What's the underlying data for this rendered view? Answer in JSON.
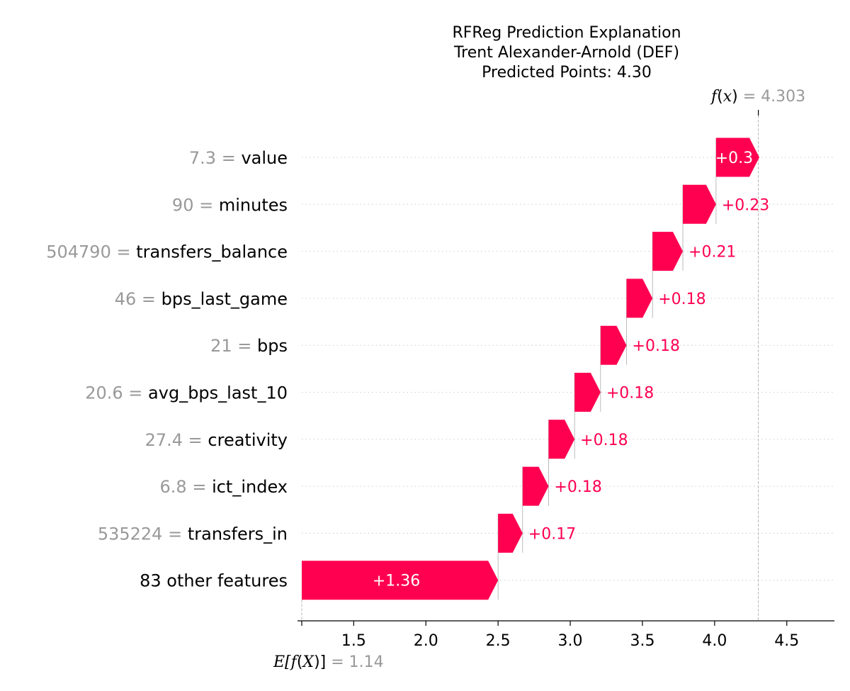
{
  "chart_data": {
    "type": "waterfall",
    "title_lines": [
      "RFReg Prediction Explanation",
      "Trent Alexander-Arnold (DEF)",
      "Predicted Points: 4.30"
    ],
    "base_value": 1.14,
    "base_value_label": "1.14",
    "base_label": {
      "prefix": "E[",
      "func": "f",
      "paren_open": "(",
      "var": "X",
      "suffix": ")]",
      "equals": " = "
    },
    "final_value": 4.303,
    "final_value_label": "4.303",
    "final_label": {
      "func": "f",
      "paren_open": "(",
      "var": "x",
      "suffix": ")",
      "equals": " = "
    },
    "features": [
      {
        "value_text": "7.3",
        "sep": " = ",
        "name": "value",
        "contribution": 0.3,
        "label": "+0.3",
        "label_inside": true
      },
      {
        "value_text": "90",
        "sep": " = ",
        "name": "minutes",
        "contribution": 0.23,
        "label": "+0.23",
        "label_inside": false
      },
      {
        "value_text": "504790",
        "sep": " = ",
        "name": "transfers_balance",
        "contribution": 0.21,
        "label": "+0.21",
        "label_inside": false
      },
      {
        "value_text": "46",
        "sep": " = ",
        "name": "bps_last_game",
        "contribution": 0.18,
        "label": "+0.18",
        "label_inside": false
      },
      {
        "value_text": "21",
        "sep": " = ",
        "name": "bps",
        "contribution": 0.18,
        "label": "+0.18",
        "label_inside": false
      },
      {
        "value_text": "20.6",
        "sep": " = ",
        "name": "avg_bps_last_10",
        "contribution": 0.18,
        "label": "+0.18",
        "label_inside": false
      },
      {
        "value_text": "27.4",
        "sep": " = ",
        "name": "creativity",
        "contribution": 0.18,
        "label": "+0.18",
        "label_inside": false
      },
      {
        "value_text": "6.8",
        "sep": " = ",
        "name": "ict_index",
        "contribution": 0.18,
        "label": "+0.18",
        "label_inside": false
      },
      {
        "value_text": "535224",
        "sep": " = ",
        "name": "transfers_in",
        "contribution": 0.17,
        "label": "+0.17",
        "label_inside": false
      },
      {
        "value_text": "",
        "sep": "",
        "name": "83 other features",
        "contribution": 1.36,
        "label": "+1.36",
        "label_inside": true
      }
    ],
    "xlim": [
      1.14,
      4.83
    ],
    "xticks": [
      1.5,
      2.0,
      2.5,
      3.0,
      3.5,
      4.0,
      4.5
    ],
    "xtick_labels": [
      "1.5",
      "2.0",
      "2.5",
      "3.0",
      "3.5",
      "4.0",
      "4.5"
    ],
    "colors": {
      "positive": "#ff0051",
      "label_outside": "#ff0051",
      "label_inside": "#ffffff",
      "value_text": "#999999",
      "gridline": "#cccccc",
      "axis": "#000000"
    }
  }
}
